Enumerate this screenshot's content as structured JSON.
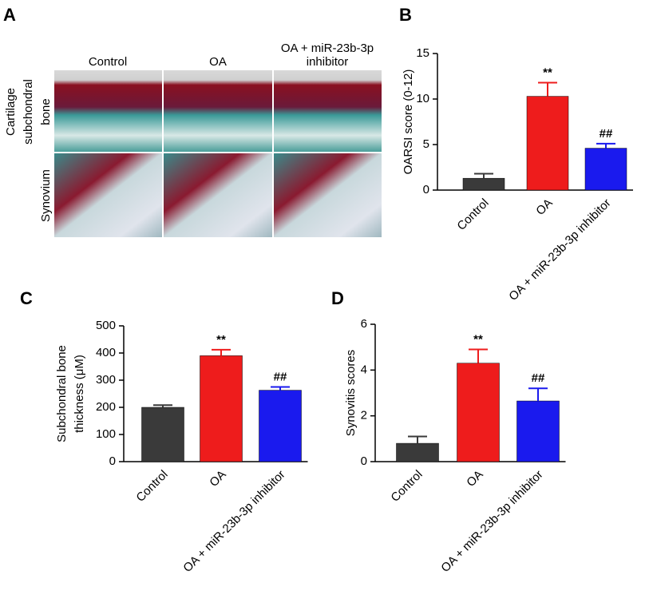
{
  "panel_a": {
    "panel": "A",
    "column_labels": [
      [
        "Control"
      ],
      [
        "OA"
      ],
      [
        "OA + miR-23b-3p",
        "inhibitor"
      ]
    ],
    "row_labels": [
      [
        "Cartilage",
        "subchondral",
        "bone"
      ],
      [
        "Synovium"
      ]
    ]
  },
  "chart_data": [
    {
      "type": "bar",
      "panel": "B",
      "ylabel": [
        "OARSI score (0-12)"
      ],
      "categories": [
        "Control",
        "OA",
        "OA + miR-23b-3p inhibitor"
      ],
      "values": [
        1.3,
        10.3,
        4.6
      ],
      "errors": [
        0.5,
        1.5,
        0.5
      ],
      "colors": [
        "#3a3a3a",
        "#ee1c1c",
        "#1a1aee"
      ],
      "ylim": [
        0,
        15
      ],
      "yticks": [
        0,
        5,
        10,
        15
      ],
      "annotations": [
        {
          "x": "OA",
          "text": "**"
        },
        {
          "x": "OA + miR-23b-3p inhibitor",
          "text": "##"
        }
      ]
    },
    {
      "type": "bar",
      "panel": "C",
      "ylabel": [
        "Subchondral bone",
        "thickness (μM)"
      ],
      "categories": [
        "Control",
        "OA",
        "OA + miR-23b-3p inhibitor"
      ],
      "values": [
        200,
        390,
        263
      ],
      "errors": [
        8,
        22,
        12
      ],
      "colors": [
        "#3a3a3a",
        "#ee1c1c",
        "#1a1aee"
      ],
      "ylim": [
        0,
        500
      ],
      "yticks": [
        0,
        100,
        200,
        300,
        400,
        500
      ],
      "annotations": [
        {
          "x": "OA",
          "text": "**"
        },
        {
          "x": "OA + miR-23b-3p inhibitor",
          "text": "##"
        }
      ]
    },
    {
      "type": "bar",
      "panel": "D",
      "ylabel": [
        "Synovitis scores"
      ],
      "categories": [
        "Control",
        "OA",
        "OA + miR-23b-3p inhibitor"
      ],
      "values": [
        0.8,
        4.3,
        2.65
      ],
      "errors": [
        0.3,
        0.6,
        0.55
      ],
      "colors": [
        "#3a3a3a",
        "#ee1c1c",
        "#1a1aee"
      ],
      "ylim": [
        0,
        6
      ],
      "yticks": [
        0,
        2,
        4,
        6
      ],
      "annotations": [
        {
          "x": "OA",
          "text": "**"
        },
        {
          "x": "OA + miR-23b-3p inhibitor",
          "text": "##"
        }
      ]
    }
  ]
}
